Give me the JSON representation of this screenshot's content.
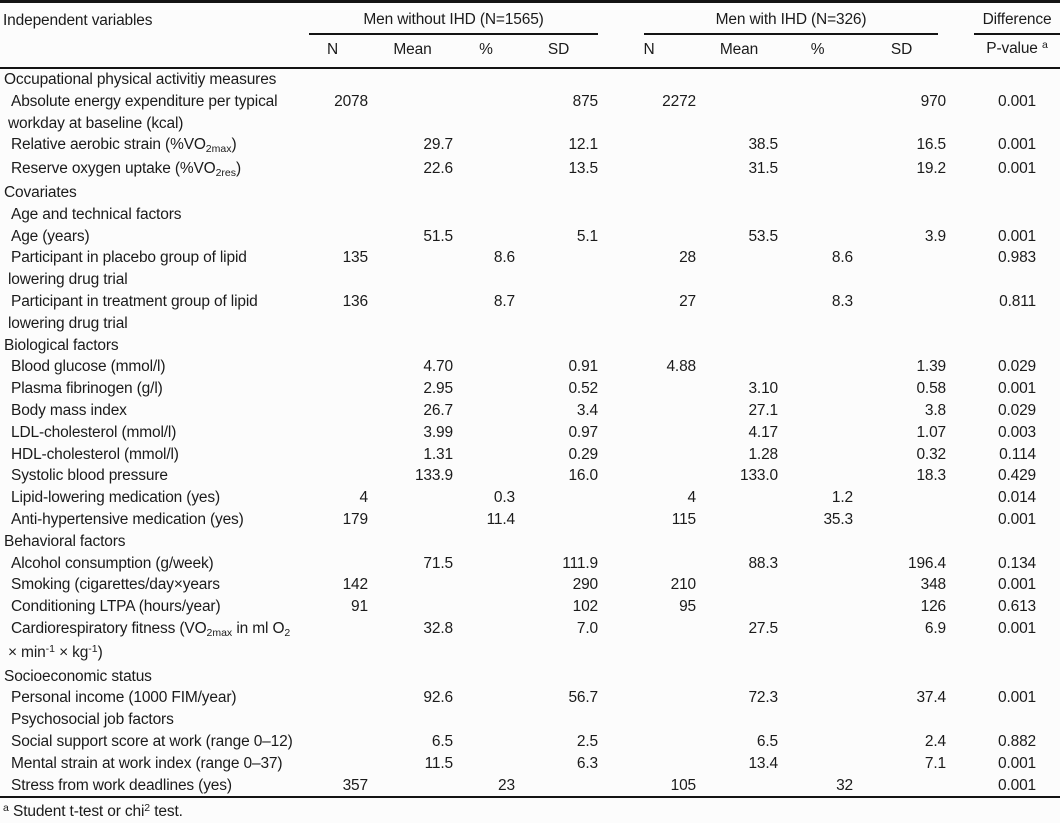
{
  "table": {
    "col1_header": "Independent variables",
    "group1": {
      "label": "Men without IHD (N=1565)",
      "cols": [
        "N",
        "Mean",
        "%",
        "SD"
      ]
    },
    "group2": {
      "label": "Men with IHD (N=326)",
      "cols": [
        "N",
        "Mean",
        "%",
        "SD"
      ]
    },
    "diff": {
      "label": "Difference",
      "pvalue_header": [
        {
          "t": "P-value "
        },
        {
          "t": "a",
          "s": "sup"
        }
      ]
    },
    "rows": [
      {
        "type": "section",
        "label": [
          {
            "t": "Occupational physical activitiy measures"
          }
        ]
      },
      {
        "type": "item",
        "label": [
          {
            "t": "Absolute energy expenditure per typical"
          }
        ],
        "label2": [
          {
            "t": "workday at baseline (kcal)"
          }
        ],
        "cells": [
          "2078",
          "",
          "",
          "875",
          "2272",
          "",
          "",
          "970",
          "0.001"
        ]
      },
      {
        "type": "item",
        "label": [
          {
            "t": "Relative aerobic strain (%VO"
          },
          {
            "t": "2max",
            "s": "sub"
          },
          {
            "t": ")"
          }
        ],
        "cells": [
          "",
          "29.7",
          "",
          "12.1",
          "",
          "38.5",
          "",
          "16.5",
          "0.001"
        ]
      },
      {
        "type": "item",
        "label": [
          {
            "t": "Reserve oxygen uptake (%VO"
          },
          {
            "t": "2res",
            "s": "sub"
          },
          {
            "t": ")"
          }
        ],
        "cells": [
          "",
          "22.6",
          "",
          "13.5",
          "",
          "31.5",
          "",
          "19.2",
          "0.001"
        ]
      },
      {
        "type": "section",
        "label": [
          {
            "t": "Covariates"
          }
        ]
      },
      {
        "type": "subsection",
        "label": [
          {
            "t": "Age and technical factors"
          }
        ]
      },
      {
        "type": "item",
        "label": [
          {
            "t": "Age (years)"
          }
        ],
        "cells": [
          "",
          "51.5",
          "",
          "5.1",
          "",
          "53.5",
          "",
          "3.9",
          "0.001"
        ]
      },
      {
        "type": "item",
        "label": [
          {
            "t": "Participant in placebo group of lipid"
          }
        ],
        "label2": [
          {
            "t": "lowering drug trial"
          }
        ],
        "cells": [
          "135",
          "",
          "8.6",
          "",
          "28",
          "",
          "8.6",
          "",
          "0.983"
        ]
      },
      {
        "type": "item",
        "label": [
          {
            "t": "Participant in treatment group of lipid"
          }
        ],
        "label2": [
          {
            "t": "lowering drug trial"
          }
        ],
        "cells": [
          "136",
          "",
          "8.7",
          "",
          "27",
          "",
          "8.3",
          "",
          "0.811"
        ]
      },
      {
        "type": "section",
        "label": [
          {
            "t": "Biological factors"
          }
        ]
      },
      {
        "type": "item",
        "label": [
          {
            "t": "Blood glucose (mmol/l)"
          }
        ],
        "cells": [
          "",
          "4.70",
          "",
          "0.91",
          "4.88",
          "",
          "",
          "1.39",
          "0.029"
        ]
      },
      {
        "type": "item",
        "label": [
          {
            "t": "Plasma fibrinogen (g/l)"
          }
        ],
        "cells": [
          "",
          "2.95",
          "",
          "0.52",
          "",
          "3.10",
          "",
          "0.58",
          "0.001"
        ]
      },
      {
        "type": "item",
        "label": [
          {
            "t": "Body mass index"
          }
        ],
        "cells": [
          "",
          "26.7",
          "",
          "3.4",
          "",
          "27.1",
          "",
          "3.8",
          "0.029"
        ]
      },
      {
        "type": "item",
        "label": [
          {
            "t": "LDL-cholesterol (mmol/l)"
          }
        ],
        "cells": [
          "",
          "3.99",
          "",
          "0.97",
          "",
          "4.17",
          "",
          "1.07",
          "0.003"
        ]
      },
      {
        "type": "item",
        "label": [
          {
            "t": "HDL-cholesterol (mmol/l)"
          }
        ],
        "cells": [
          "",
          "1.31",
          "",
          "0.29",
          "",
          "1.28",
          "",
          "0.32",
          "0.114"
        ]
      },
      {
        "type": "item",
        "label": [
          {
            "t": "Systolic blood pressure"
          }
        ],
        "cells": [
          "",
          "133.9",
          "",
          "16.0",
          "",
          "133.0",
          "",
          "18.3",
          "0.429"
        ]
      },
      {
        "type": "item",
        "label": [
          {
            "t": "Lipid-lowering medication (yes)"
          }
        ],
        "cells": [
          "4",
          "",
          "0.3",
          "",
          "4",
          "",
          "1.2",
          "",
          "0.014"
        ]
      },
      {
        "type": "item",
        "label": [
          {
            "t": "Anti-hypertensive medication (yes)"
          }
        ],
        "cells": [
          "179",
          "",
          "11.4",
          "",
          "115",
          "",
          "35.3",
          "",
          "0.001"
        ]
      },
      {
        "type": "section",
        "label": [
          {
            "t": "Behavioral factors"
          }
        ]
      },
      {
        "type": "item",
        "label": [
          {
            "t": "Alcohol consumption (g/week)"
          }
        ],
        "cells": [
          "",
          "71.5",
          "",
          "111.9",
          "",
          "88.3",
          "",
          "196.4",
          "0.134"
        ]
      },
      {
        "type": "item",
        "label": [
          {
            "t": "Smoking (cigarettes/day×years"
          }
        ],
        "cells": [
          "142",
          "",
          "",
          "290",
          "210",
          "",
          "",
          "348",
          "0.001"
        ]
      },
      {
        "type": "item",
        "label": [
          {
            "t": "Conditioning LTPA (hours/year)"
          }
        ],
        "cells": [
          "91",
          "",
          "",
          "102",
          "95",
          "",
          "",
          "126",
          "0.613"
        ]
      },
      {
        "type": "item",
        "label": [
          {
            "t": "Cardiorespiratory fitness (VO"
          },
          {
            "t": "2max",
            "s": "sub"
          },
          {
            "t": " in ml O"
          },
          {
            "t": "2",
            "s": "sub"
          }
        ],
        "label2": [
          {
            "t": "× min"
          },
          {
            "t": "-1",
            "s": "sup"
          },
          {
            "t": " × kg"
          },
          {
            "t": "-1",
            "s": "sup"
          },
          {
            "t": ")"
          }
        ],
        "cells": [
          "",
          "32.8",
          "",
          "7.0",
          "",
          "27.5",
          "",
          "6.9",
          "0.001"
        ]
      },
      {
        "type": "section",
        "label": [
          {
            "t": "Socioeconomic status"
          }
        ]
      },
      {
        "type": "item",
        "label": [
          {
            "t": "Personal income (1000 FIM/year)"
          }
        ],
        "cells": [
          "",
          "92.6",
          "",
          "56.7",
          "",
          "72.3",
          "",
          "37.4",
          "0.001"
        ]
      },
      {
        "type": "subsection",
        "label": [
          {
            "t": "Psychosocial job factors"
          }
        ]
      },
      {
        "type": "item",
        "label": [
          {
            "t": "Social support score at work (range 0–12)"
          }
        ],
        "cells": [
          "",
          "6.5",
          "",
          "2.5",
          "",
          "6.5",
          "",
          "2.4",
          "0.882"
        ]
      },
      {
        "type": "item",
        "label": [
          {
            "t": "Mental strain at work index (range 0–37)"
          }
        ],
        "cells": [
          "",
          "11.5",
          "",
          "6.3",
          "",
          "13.4",
          "",
          "7.1",
          "0.001"
        ]
      },
      {
        "type": "item",
        "label": [
          {
            "t": "Stress from work deadlines (yes)"
          }
        ],
        "cells": [
          "357",
          "",
          "23",
          "",
          "105",
          "",
          "32",
          "",
          "0.001"
        ]
      }
    ]
  },
  "footnote": [
    {
      "t": "a",
      "s": "sup"
    },
    {
      "t": " Student t-test or chi"
    },
    {
      "t": "2",
      "s": "sup"
    },
    {
      "t": " test."
    }
  ]
}
